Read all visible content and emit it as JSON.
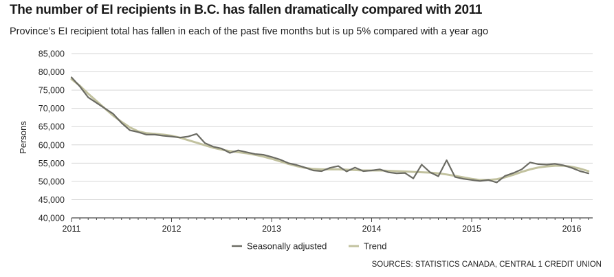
{
  "header": {
    "title": "The number of EI recipients in B.C. has fallen dramatically compared with 2011",
    "subtitle": "Province’s EI recipient total has fallen in each of the past five months but is up 5% compared with a year ago"
  },
  "source": "SOURCES: STATISTICS CANADA, CENTRAL 1 CREDIT UNION",
  "chart_data": {
    "type": "line",
    "title": "The number of EI recipients in B.C. has fallen dramatically compared with 2011",
    "subtitle": "Province’s EI recipient total has fallen in each of the past five months but is up 5% compared with a year ago",
    "xlabel": "",
    "ylabel": "Persons",
    "ylim": [
      40000,
      85000
    ],
    "y_ticks": [
      40000,
      45000,
      50000,
      55000,
      60000,
      65000,
      70000,
      75000,
      80000,
      85000
    ],
    "y_tick_labels": [
      "40,000",
      "45,000",
      "50,000",
      "55,000",
      "60,000",
      "65,000",
      "70,000",
      "75,000",
      "80,000",
      "85,000"
    ],
    "x_ticks": [
      "2011",
      "2012",
      "2013",
      "2014",
      "2015",
      "2016"
    ],
    "x_start": "2011-01",
    "x_end": "2016-03",
    "grid": true,
    "legend_position": "bottom",
    "colors": {
      "seasonally_adjusted": "#6b6b63",
      "trend": "#c2c29f",
      "grid": "#d6d6d6",
      "axis": "#444444"
    },
    "months": [
      "2011-01",
      "2011-02",
      "2011-03",
      "2011-04",
      "2011-05",
      "2011-06",
      "2011-07",
      "2011-08",
      "2011-09",
      "2011-10",
      "2011-11",
      "2011-12",
      "2012-01",
      "2012-02",
      "2012-03",
      "2012-04",
      "2012-05",
      "2012-06",
      "2012-07",
      "2012-08",
      "2012-09",
      "2012-10",
      "2012-11",
      "2012-12",
      "2013-01",
      "2013-02",
      "2013-03",
      "2013-04",
      "2013-05",
      "2013-06",
      "2013-07",
      "2013-08",
      "2013-09",
      "2013-10",
      "2013-11",
      "2013-12",
      "2014-01",
      "2014-02",
      "2014-03",
      "2014-04",
      "2014-05",
      "2014-06",
      "2014-07",
      "2014-08",
      "2014-09",
      "2014-10",
      "2014-11",
      "2014-12",
      "2015-01",
      "2015-02",
      "2015-03",
      "2015-04",
      "2015-05",
      "2015-06",
      "2015-07",
      "2015-08",
      "2015-09",
      "2015-10",
      "2015-11",
      "2015-12",
      "2016-01",
      "2016-02",
      "2016-03"
    ],
    "series": [
      {
        "name": "Seasonally adjusted",
        "values": [
          78500,
          76000,
          73000,
          71500,
          70000,
          68500,
          66000,
          64000,
          63500,
          62800,
          62800,
          62500,
          62300,
          62000,
          62300,
          63000,
          60500,
          59500,
          59000,
          57800,
          58500,
          58000,
          57500,
          57300,
          56700,
          56000,
          55000,
          54500,
          53800,
          53000,
          52800,
          53700,
          54200,
          52700,
          53800,
          52800,
          53000,
          53300,
          52500,
          52200,
          52300,
          50800,
          54600,
          52500,
          51400,
          55800,
          51200,
          50700,
          50400,
          50100,
          50400,
          49700,
          51500,
          52300,
          53300,
          55200,
          54700,
          54600,
          54800,
          54400,
          53700,
          52800,
          52200
        ]
      },
      {
        "name": "Trend",
        "values": [
          78000,
          76200,
          74000,
          72000,
          70000,
          68000,
          66300,
          64800,
          63700,
          63200,
          63000,
          62800,
          62500,
          62000,
          61300,
          60600,
          59900,
          59200,
          58700,
          58300,
          58000,
          57700,
          57300,
          56800,
          56200,
          55500,
          54800,
          54200,
          53700,
          53400,
          53300,
          53300,
          53300,
          53200,
          53100,
          53000,
          53000,
          53000,
          52900,
          52800,
          52700,
          52600,
          52500,
          52400,
          52200,
          51900,
          51500,
          51100,
          50700,
          50400,
          50400,
          50600,
          51100,
          51800,
          52600,
          53300,
          53800,
          54100,
          54300,
          54300,
          54000,
          53500,
          52800
        ]
      }
    ]
  }
}
